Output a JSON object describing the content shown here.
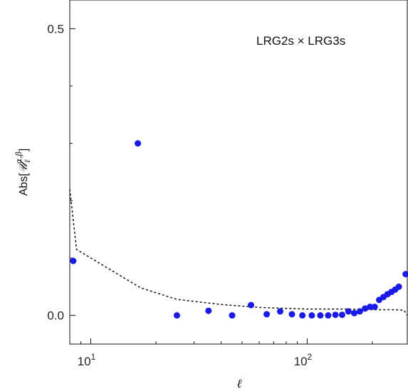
{
  "chart_data": {
    "type": "scatter",
    "annotation": "LRG2s × LRG3s",
    "xlabel": "ℓ",
    "ylabel_prefix": "Abs[",
    "ylabel_symbol": "𝒰",
    "ylabel_sub": "ℓ",
    "ylabel_sup": "α,β",
    "ylabel_suffix": "]",
    "x_scale": "log",
    "xlim": [
      8,
      290
    ],
    "ylim": [
      -0.05,
      0.55
    ],
    "x_ticks": [
      {
        "value": 10,
        "base": "10",
        "exp": "1"
      },
      {
        "value": 100,
        "base": "10",
        "exp": "2"
      }
    ],
    "y_ticks": [
      {
        "value": 0.0,
        "label": "0.0"
      },
      {
        "value": 0.5,
        "label": "0.5"
      }
    ],
    "grid": false,
    "series": [
      {
        "style": "points",
        "color": "#1a1ae6",
        "points": [
          [
            8.3,
            0.095
          ],
          [
            16.5,
            0.3
          ],
          [
            25,
            0.0
          ],
          [
            35,
            0.008
          ],
          [
            45,
            0.0
          ],
          [
            55,
            0.018
          ],
          [
            65,
            0.002
          ],
          [
            75,
            0.007
          ],
          [
            85,
            0.002
          ],
          [
            95,
            0.0
          ],
          [
            105,
            0.0
          ],
          [
            115,
            0.0
          ],
          [
            125,
            0.0
          ],
          [
            135,
            0.001
          ],
          [
            145,
            0.001
          ],
          [
            155,
            0.007
          ],
          [
            165,
            0.004
          ],
          [
            175,
            0.007
          ],
          [
            185,
            0.012
          ],
          [
            195,
            0.015
          ],
          [
            205,
            0.015
          ],
          [
            215,
            0.027
          ],
          [
            225,
            0.032
          ],
          [
            235,
            0.037
          ],
          [
            245,
            0.041
          ],
          [
            255,
            0.045
          ],
          [
            265,
            0.05
          ],
          [
            285,
            0.072
          ]
        ]
      },
      {
        "style": "dashed",
        "color": "#111111",
        "points": [
          [
            8,
            0.22
          ],
          [
            8.6,
            0.115
          ],
          [
            17,
            0.048
          ],
          [
            25,
            0.028
          ],
          [
            40,
            0.019
          ],
          [
            60,
            0.014
          ],
          [
            100,
            0.011
          ],
          [
            150,
            0.011
          ],
          [
            200,
            0.01
          ],
          [
            250,
            0.01
          ],
          [
            280,
            0.009
          ],
          [
            290,
            0.0
          ]
        ]
      }
    ]
  }
}
